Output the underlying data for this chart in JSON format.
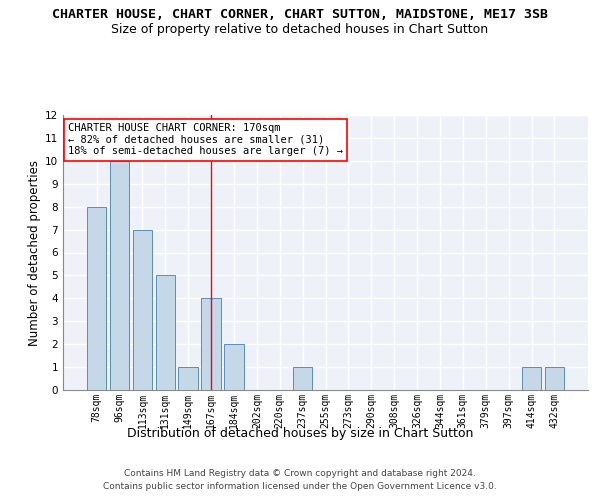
{
  "title_line1": "CHARTER HOUSE, CHART CORNER, CHART SUTTON, MAIDSTONE, ME17 3SB",
  "title_line2": "Size of property relative to detached houses in Chart Sutton",
  "xlabel": "Distribution of detached houses by size in Chart Sutton",
  "ylabel": "Number of detached properties",
  "categories": [
    "78sqm",
    "96sqm",
    "113sqm",
    "131sqm",
    "149sqm",
    "167sqm",
    "184sqm",
    "202sqm",
    "220sqm",
    "237sqm",
    "255sqm",
    "273sqm",
    "290sqm",
    "308sqm",
    "326sqm",
    "344sqm",
    "361sqm",
    "379sqm",
    "397sqm",
    "414sqm",
    "432sqm"
  ],
  "values": [
    8,
    10,
    7,
    5,
    1,
    4,
    2,
    0,
    0,
    1,
    0,
    0,
    0,
    0,
    0,
    0,
    0,
    0,
    0,
    1,
    1
  ],
  "bar_color": "#c5d8e8",
  "bar_edge_color": "#5b8db8",
  "background_color": "#eef2f8",
  "grid_color": "#ffffff",
  "ylim": [
    0,
    12
  ],
  "yticks": [
    0,
    1,
    2,
    3,
    4,
    5,
    6,
    7,
    8,
    9,
    10,
    11,
    12
  ],
  "red_line_index": 5,
  "annotation_line1": "CHARTER HOUSE CHART CORNER: 170sqm",
  "annotation_line2": "← 82% of detached houses are smaller (31)",
  "annotation_line3": "18% of semi-detached houses are larger (7) →",
  "footer_line1": "Contains HM Land Registry data © Crown copyright and database right 2024.",
  "footer_line2": "Contains public sector information licensed under the Open Government Licence v3.0.",
  "title_fontsize": 9.5,
  "subtitle_fontsize": 9,
  "ylabel_fontsize": 8.5,
  "xlabel_fontsize": 9,
  "tick_fontsize": 7,
  "annotation_fontsize": 7.5,
  "footer_fontsize": 6.5
}
